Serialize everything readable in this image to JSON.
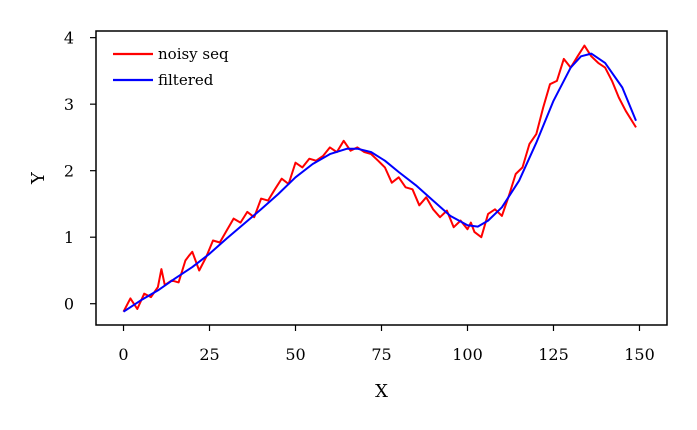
{
  "chart_data": {
    "type": "line",
    "xlabel": "X",
    "ylabel": "Y",
    "xlim": [
      -8,
      158
    ],
    "ylim": [
      -0.32,
      4.1
    ],
    "xticks": [
      0,
      25,
      50,
      75,
      100,
      125,
      150
    ],
    "yticks": [
      0,
      1,
      2,
      3,
      4
    ],
    "grid": false,
    "legend_position": "top-left",
    "series": [
      {
        "name": "noisy seq",
        "color": "#ff0000",
        "x": [
          0,
          2,
          4,
          6,
          8,
          10,
          11,
          12,
          14,
          16,
          18,
          19,
          20,
          22,
          24,
          26,
          28,
          30,
          32,
          34,
          36,
          38,
          40,
          42,
          44,
          46,
          48,
          50,
          52,
          54,
          56,
          58,
          60,
          62,
          64,
          66,
          68,
          70,
          72,
          74,
          76,
          78,
          80,
          82,
          84,
          86,
          88,
          90,
          92,
          94,
          96,
          98,
          100,
          101,
          102,
          104,
          106,
          108,
          110,
          112,
          114,
          116,
          118,
          120,
          122,
          124,
          126,
          128,
          130,
          132,
          134,
          136,
          138,
          140,
          142,
          144,
          146,
          149
        ],
        "y": [
          -0.12,
          0.08,
          -0.08,
          0.15,
          0.1,
          0.25,
          0.52,
          0.28,
          0.35,
          0.32,
          0.65,
          0.72,
          0.78,
          0.5,
          0.7,
          0.95,
          0.92,
          1.1,
          1.28,
          1.22,
          1.38,
          1.3,
          1.58,
          1.55,
          1.72,
          1.88,
          1.8,
          2.12,
          2.05,
          2.18,
          2.15,
          2.22,
          2.35,
          2.28,
          2.45,
          2.3,
          2.35,
          2.28,
          2.25,
          2.15,
          2.05,
          1.82,
          1.9,
          1.75,
          1.72,
          1.48,
          1.6,
          1.42,
          1.3,
          1.4,
          1.15,
          1.25,
          1.12,
          1.22,
          1.08,
          1.0,
          1.35,
          1.42,
          1.32,
          1.62,
          1.95,
          2.05,
          2.4,
          2.55,
          2.95,
          3.3,
          3.35,
          3.68,
          3.55,
          3.72,
          3.88,
          3.72,
          3.62,
          3.55,
          3.35,
          3.1,
          2.9,
          2.65
        ]
      },
      {
        "name": "filtered",
        "color": "#0000ff",
        "x": [
          0,
          5,
          10,
          15,
          20,
          25,
          30,
          35,
          40,
          45,
          50,
          55,
          60,
          65,
          68,
          72,
          76,
          80,
          85,
          90,
          95,
          100,
          103,
          106,
          110,
          115,
          120,
          125,
          130,
          133,
          136,
          140,
          145,
          149
        ],
        "y": [
          -0.12,
          0.05,
          0.2,
          0.38,
          0.55,
          0.75,
          0.98,
          1.2,
          1.42,
          1.65,
          1.9,
          2.1,
          2.25,
          2.33,
          2.33,
          2.28,
          2.15,
          1.98,
          1.78,
          1.55,
          1.32,
          1.18,
          1.16,
          1.25,
          1.45,
          1.85,
          2.42,
          3.05,
          3.55,
          3.72,
          3.76,
          3.62,
          3.25,
          2.75
        ]
      }
    ]
  }
}
